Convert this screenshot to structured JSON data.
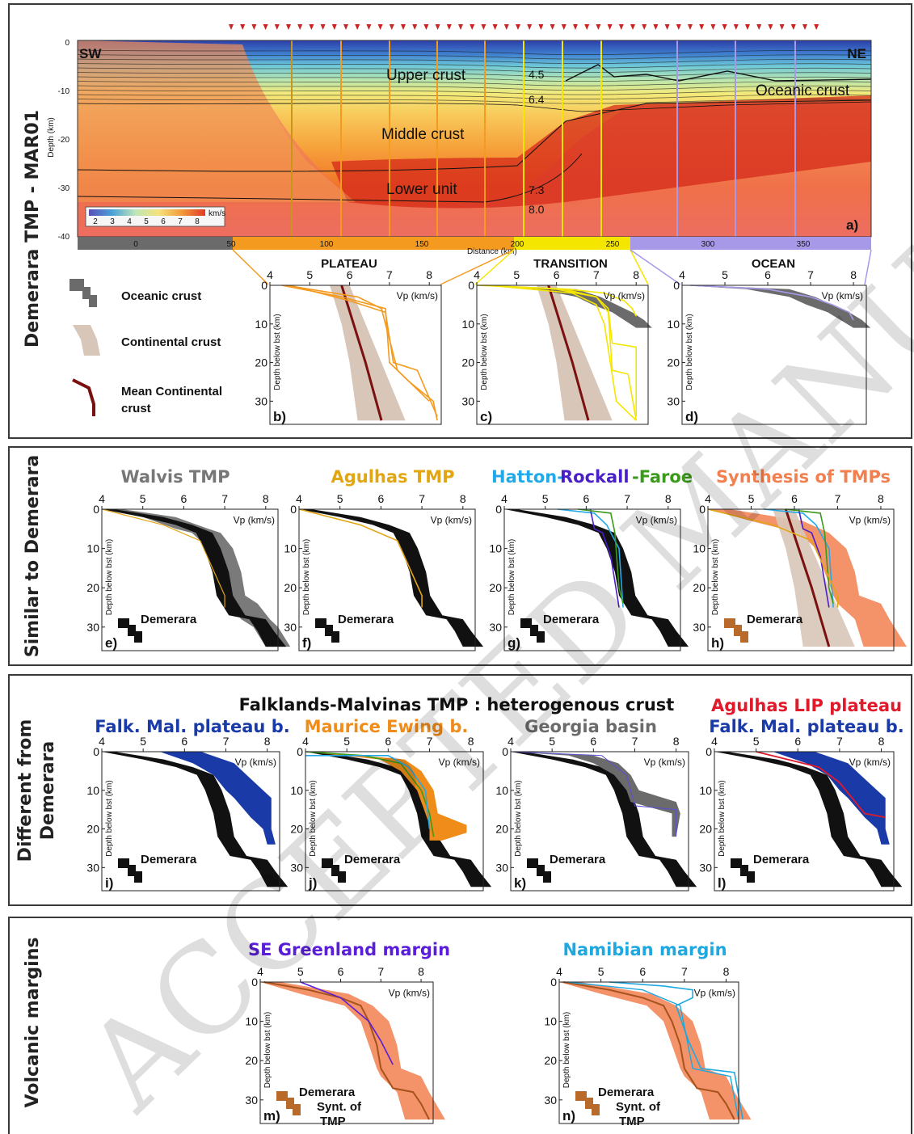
{
  "watermark": "ACCEPTED MANUSCRIPT",
  "section_a": {
    "row_label": "Demerara TMP - MAR01",
    "panel_letter": "a)",
    "sw": "SW",
    "ne": "NE",
    "upper_crust": "Upper crust",
    "middle_crust": "Middle crust",
    "lower_unit": "Lower unit",
    "oceanic_crust": "Oceanic crust",
    "v45": "4.5",
    "v64": "6.4",
    "v73": "7.3",
    "v80": "8.0",
    "y_axis_label": "Depth (km)",
    "y_ticks": [
      "0",
      "-10",
      "-20",
      "-30",
      "-40"
    ],
    "x_axis_label": "Distance (km)",
    "x_ticks": [
      "0",
      "50",
      "100",
      "150",
      "200",
      "250",
      "300",
      "350"
    ],
    "colorbar_unit": "km/s",
    "colorbar_ticks": [
      "2",
      "3",
      "4",
      "5",
      "6",
      "7",
      "8"
    ],
    "zone_labels": [
      "PLATEAU",
      "TRANSITION",
      "OCEAN"
    ]
  },
  "legend": {
    "oceanic": "Oceanic crust",
    "continental": "Continental crust",
    "mean_line1": "Mean Continental",
    "mean_line2": "crust"
  },
  "common": {
    "x_ticks": [
      "4",
      "5",
      "6",
      "7",
      "8"
    ],
    "y_ticks": [
      "0",
      "10",
      "20",
      "30"
    ],
    "vp_label": "Vp (km/s)",
    "depth_label": "Depth below bst (km)",
    "demerara": "Demerara",
    "synt1": "Synt. of",
    "synt2": "TMP"
  },
  "section_e": {
    "row_label": "Similar to Demerara",
    "titles": [
      "Walvis TMP",
      "Agulhas TMP",
      "Hatton-",
      "Rockall",
      "-Faroe",
      "Synthesis of TMPs"
    ]
  },
  "section_i": {
    "row_label_1": "Different from",
    "row_label_2": "Demerara",
    "header": "Falklands-Malvinas TMP : heterogenous crust",
    "titles": [
      "Falk. Mal. plateau b.",
      "Maurice Ewing b.",
      "Georgia basin",
      "Agulhas LIP plateau",
      "Falk. Mal. plateau b."
    ]
  },
  "section_m": {
    "row_label": "Volcanic margins",
    "titles": [
      "SE Greenland margin",
      "Namibian margin"
    ]
  },
  "panel_letters": [
    "b)",
    "c)",
    "d)",
    "e)",
    "f)",
    "g)",
    "h)",
    "i)",
    "j)",
    "k)",
    "l)",
    "m)",
    "n)"
  ],
  "colors": {
    "plateau": "#f39a1f",
    "transition": "#f5e600",
    "ocean": "#a898e8",
    "oceanic_gray": "#6b6b6b",
    "continental": "#d8c6b8",
    "mean_continental": "#7a1010",
    "walvis": "#7a7a7a",
    "agulhas": "#e2a612",
    "hatton": "#24a9e8",
    "rockall": "#4a1fc8",
    "faroe": "#3a9a1a",
    "synthesis": "#f27f4f",
    "falk_blue": "#1a3aa8",
    "maurice": "#f08c1a",
    "georgia": "#6b6b6b",
    "agulhas_lip": "#e01a2a",
    "greenland": "#5a1ed8",
    "namibia": "#1ea8e0",
    "demerara_brown": "#b86a2a"
  },
  "profiles": {
    "demerara": [
      [
        4.1,
        0
      ],
      [
        5.2,
        2
      ],
      [
        6.0,
        4
      ],
      [
        6.5,
        6
      ],
      [
        6.7,
        10
      ],
      [
        6.9,
        16
      ],
      [
        7.0,
        22
      ],
      [
        7.3,
        27
      ],
      [
        7.8,
        28
      ],
      [
        8.0,
        31
      ],
      [
        8.2,
        35
      ]
    ],
    "mean_continental": [
      [
        5.8,
        0
      ],
      [
        6.1,
        10
      ],
      [
        6.4,
        20
      ],
      [
        6.8,
        35
      ]
    ],
    "oceanic": [
      [
        4.2,
        0
      ],
      [
        6.0,
        1
      ],
      [
        6.8,
        3
      ],
      [
        7.1,
        5
      ],
      [
        7.6,
        7
      ],
      [
        7.9,
        9
      ],
      [
        8.2,
        11
      ]
    ],
    "transition_profiles": [
      [
        [
          4.0,
          0
        ],
        [
          6.3,
          1
        ],
        [
          7.2,
          2
        ],
        [
          7.7,
          4
        ],
        [
          7.9,
          6
        ],
        [
          8.0,
          8
        ]
      ],
      [
        [
          4.2,
          0
        ],
        [
          6.0,
          1
        ],
        [
          7.0,
          3
        ],
        [
          7.3,
          6
        ],
        [
          7.4,
          15
        ],
        [
          8.0,
          16
        ],
        [
          8.0,
          34
        ]
      ],
      [
        [
          4.1,
          0
        ],
        [
          6.2,
          1
        ],
        [
          7.0,
          3
        ],
        [
          7.3,
          7
        ],
        [
          7.4,
          22
        ],
        [
          7.8,
          23
        ],
        [
          8.0,
          35
        ]
      ],
      [
        [
          4.3,
          0
        ],
        [
          6.4,
          2
        ],
        [
          7.0,
          5
        ],
        [
          7.2,
          10
        ],
        [
          7.5,
          30
        ],
        [
          8.0,
          35
        ]
      ]
    ],
    "plateau_profiles": [
      [
        [
          4.3,
          0
        ],
        [
          5.8,
          3
        ],
        [
          6.9,
          6
        ],
        [
          7.0,
          20
        ],
        [
          7.5,
          25
        ],
        [
          8.1,
          30
        ],
        [
          8.2,
          35
        ]
      ],
      [
        [
          4.5,
          0
        ],
        [
          6.0,
          4
        ],
        [
          6.9,
          7
        ],
        [
          7.1,
          20
        ],
        [
          7.7,
          22
        ],
        [
          8.2,
          34
        ]
      ],
      [
        [
          4.4,
          0
        ],
        [
          6.2,
          3
        ],
        [
          6.8,
          6
        ],
        [
          7.2,
          22
        ],
        [
          8.0,
          30
        ]
      ]
    ],
    "ocean_profile": [
      [
        4.2,
        0
      ],
      [
        6.0,
        1
      ],
      [
        7.0,
        3
      ],
      [
        7.5,
        5
      ],
      [
        7.9,
        7
      ],
      [
        8.0,
        9
      ]
    ],
    "agulhas_tmp": [
      [
        4.0,
        0
      ],
      [
        5.5,
        4
      ],
      [
        6.4,
        8
      ],
      [
        7.0,
        22
      ],
      [
        7.0,
        25
      ]
    ],
    "hatton": [
      [
        5.3,
        0
      ],
      [
        6.2,
        1
      ],
      [
        6.5,
        4
      ],
      [
        6.8,
        10
      ],
      [
        6.9,
        25
      ]
    ],
    "rockall": [
      [
        6.1,
        0
      ],
      [
        6.2,
        5
      ],
      [
        6.4,
        6
      ],
      [
        6.6,
        12
      ],
      [
        6.8,
        25
      ]
    ],
    "faroe": [
      [
        5.8,
        0
      ],
      [
        6.6,
        1
      ],
      [
        6.7,
        6
      ],
      [
        6.8,
        20
      ],
      [
        6.9,
        24
      ]
    ],
    "agulhas_lip": [
      [
        5.0,
        0
      ],
      [
        6.5,
        4
      ],
      [
        7.0,
        8
      ],
      [
        7.6,
        16
      ],
      [
        8.1,
        17
      ]
    ],
    "greenland": [
      [
        5.0,
        0
      ],
      [
        6.0,
        4
      ],
      [
        6.7,
        10
      ],
      [
        7.0,
        15
      ],
      [
        7.3,
        21
      ]
    ],
    "namibia_1": [
      [
        5.2,
        0
      ],
      [
        6.5,
        1
      ],
      [
        7.2,
        2
      ],
      [
        7.2,
        4
      ],
      [
        6.8,
        6
      ],
      [
        7.1,
        15
      ],
      [
        7.4,
        22
      ],
      [
        8.2,
        23
      ],
      [
        8.4,
        35
      ]
    ],
    "namibia_2": [
      [
        4.2,
        0
      ],
      [
        6.0,
        2
      ],
      [
        6.9,
        6
      ],
      [
        7.2,
        22
      ],
      [
        8.1,
        24
      ],
      [
        8.3,
        35
      ]
    ],
    "maurice_lines": [
      [
        [
          4.0,
          0
        ],
        [
          5.4,
          1
        ],
        [
          6.3,
          3
        ],
        [
          6.8,
          10
        ],
        [
          7.0,
          16
        ],
        [
          7.1,
          22
        ]
      ],
      [
        [
          4.0,
          1
        ],
        [
          6.0,
          1
        ],
        [
          6.5,
          4
        ],
        [
          6.9,
          10
        ],
        [
          7.0,
          20
        ]
      ]
    ],
    "georgia_line": [
      [
        4.0,
        0
      ],
      [
        6.2,
        1
      ],
      [
        6.8,
        6
      ],
      [
        7.0,
        14
      ],
      [
        8.0,
        15
      ],
      [
        8.0,
        22
      ]
    ]
  },
  "bands": {
    "demerara": {
      "d": [
        0,
        2,
        4,
        6,
        10,
        16,
        22,
        27,
        28,
        31,
        35
      ],
      "lo": [
        4.0,
        5.0,
        5.8,
        6.3,
        6.5,
        6.7,
        6.8,
        7.1,
        7.6,
        7.8,
        8.0
      ],
      "hi": [
        4.3,
        5.5,
        6.2,
        6.7,
        6.9,
        7.1,
        7.2,
        7.5,
        8.0,
        8.2,
        8.5
      ]
    },
    "continental": {
      "d": [
        0,
        10,
        20,
        35
      ],
      "lo": [
        5.5,
        5.8,
        6.0,
        6.2
      ],
      "hi": [
        6.0,
        6.4,
        6.8,
        7.4
      ]
    },
    "oceanic": {
      "d": [
        0,
        1,
        3,
        5,
        7,
        9,
        11
      ],
      "lo": [
        4.0,
        5.5,
        6.5,
        6.9,
        7.4,
        7.7,
        8.0
      ],
      "hi": [
        4.4,
        6.5,
        7.1,
        7.5,
        7.9,
        8.2,
        8.4
      ]
    },
    "walvis": {
      "d": [
        0,
        2,
        5,
        6,
        10,
        16,
        22,
        24,
        28,
        30,
        35
      ],
      "lo": [
        4.0,
        5.0,
        5.8,
        6.2,
        6.6,
        6.8,
        7.0,
        7.1,
        7.4,
        7.7,
        8.0
      ],
      "hi": [
        4.5,
        5.8,
        6.6,
        6.9,
        7.2,
        7.4,
        7.5,
        7.8,
        8.1,
        8.3,
        8.6
      ]
    },
    "synthesis": {
      "d": [
        0,
        3,
        6,
        10,
        16,
        22,
        24,
        28,
        35
      ],
      "lo": [
        4.0,
        5.0,
        6.1,
        6.5,
        6.7,
        6.9,
        7.0,
        7.4,
        7.6
      ],
      "hi": [
        4.5,
        6.2,
        6.8,
        7.2,
        7.4,
        7.5,
        8.0,
        8.2,
        8.6
      ]
    },
    "falk_blue": {
      "d": [
        0,
        3,
        6,
        10,
        12,
        17,
        20,
        24
      ],
      "lo": [
        5.4,
        6.2,
        6.7,
        7.0,
        7.2,
        7.6,
        7.9,
        8.0
      ],
      "hi": [
        6.4,
        7.2,
        7.5,
        7.9,
        8.1,
        8.1,
        8.1,
        8.2
      ]
    },
    "maurice": {
      "d": [
        0,
        2,
        5,
        10,
        16,
        19,
        21,
        23
      ],
      "lo": [
        4.0,
        5.8,
        6.3,
        6.7,
        6.9,
        7.0,
        7.0,
        7.0
      ],
      "hi": [
        4.3,
        6.4,
        6.8,
        7.1,
        7.2,
        7.9,
        7.9,
        7.3
      ]
    },
    "georgia": {
      "d": [
        0,
        1,
        3,
        6,
        10,
        13,
        16,
        22
      ],
      "lo": [
        4.0,
        5.4,
        6.0,
        6.5,
        6.8,
        6.9,
        7.9,
        7.9
      ],
      "hi": [
        4.3,
        6.0,
        6.6,
        6.9,
        7.1,
        8.0,
        8.1,
        8.0
      ]
    }
  }
}
